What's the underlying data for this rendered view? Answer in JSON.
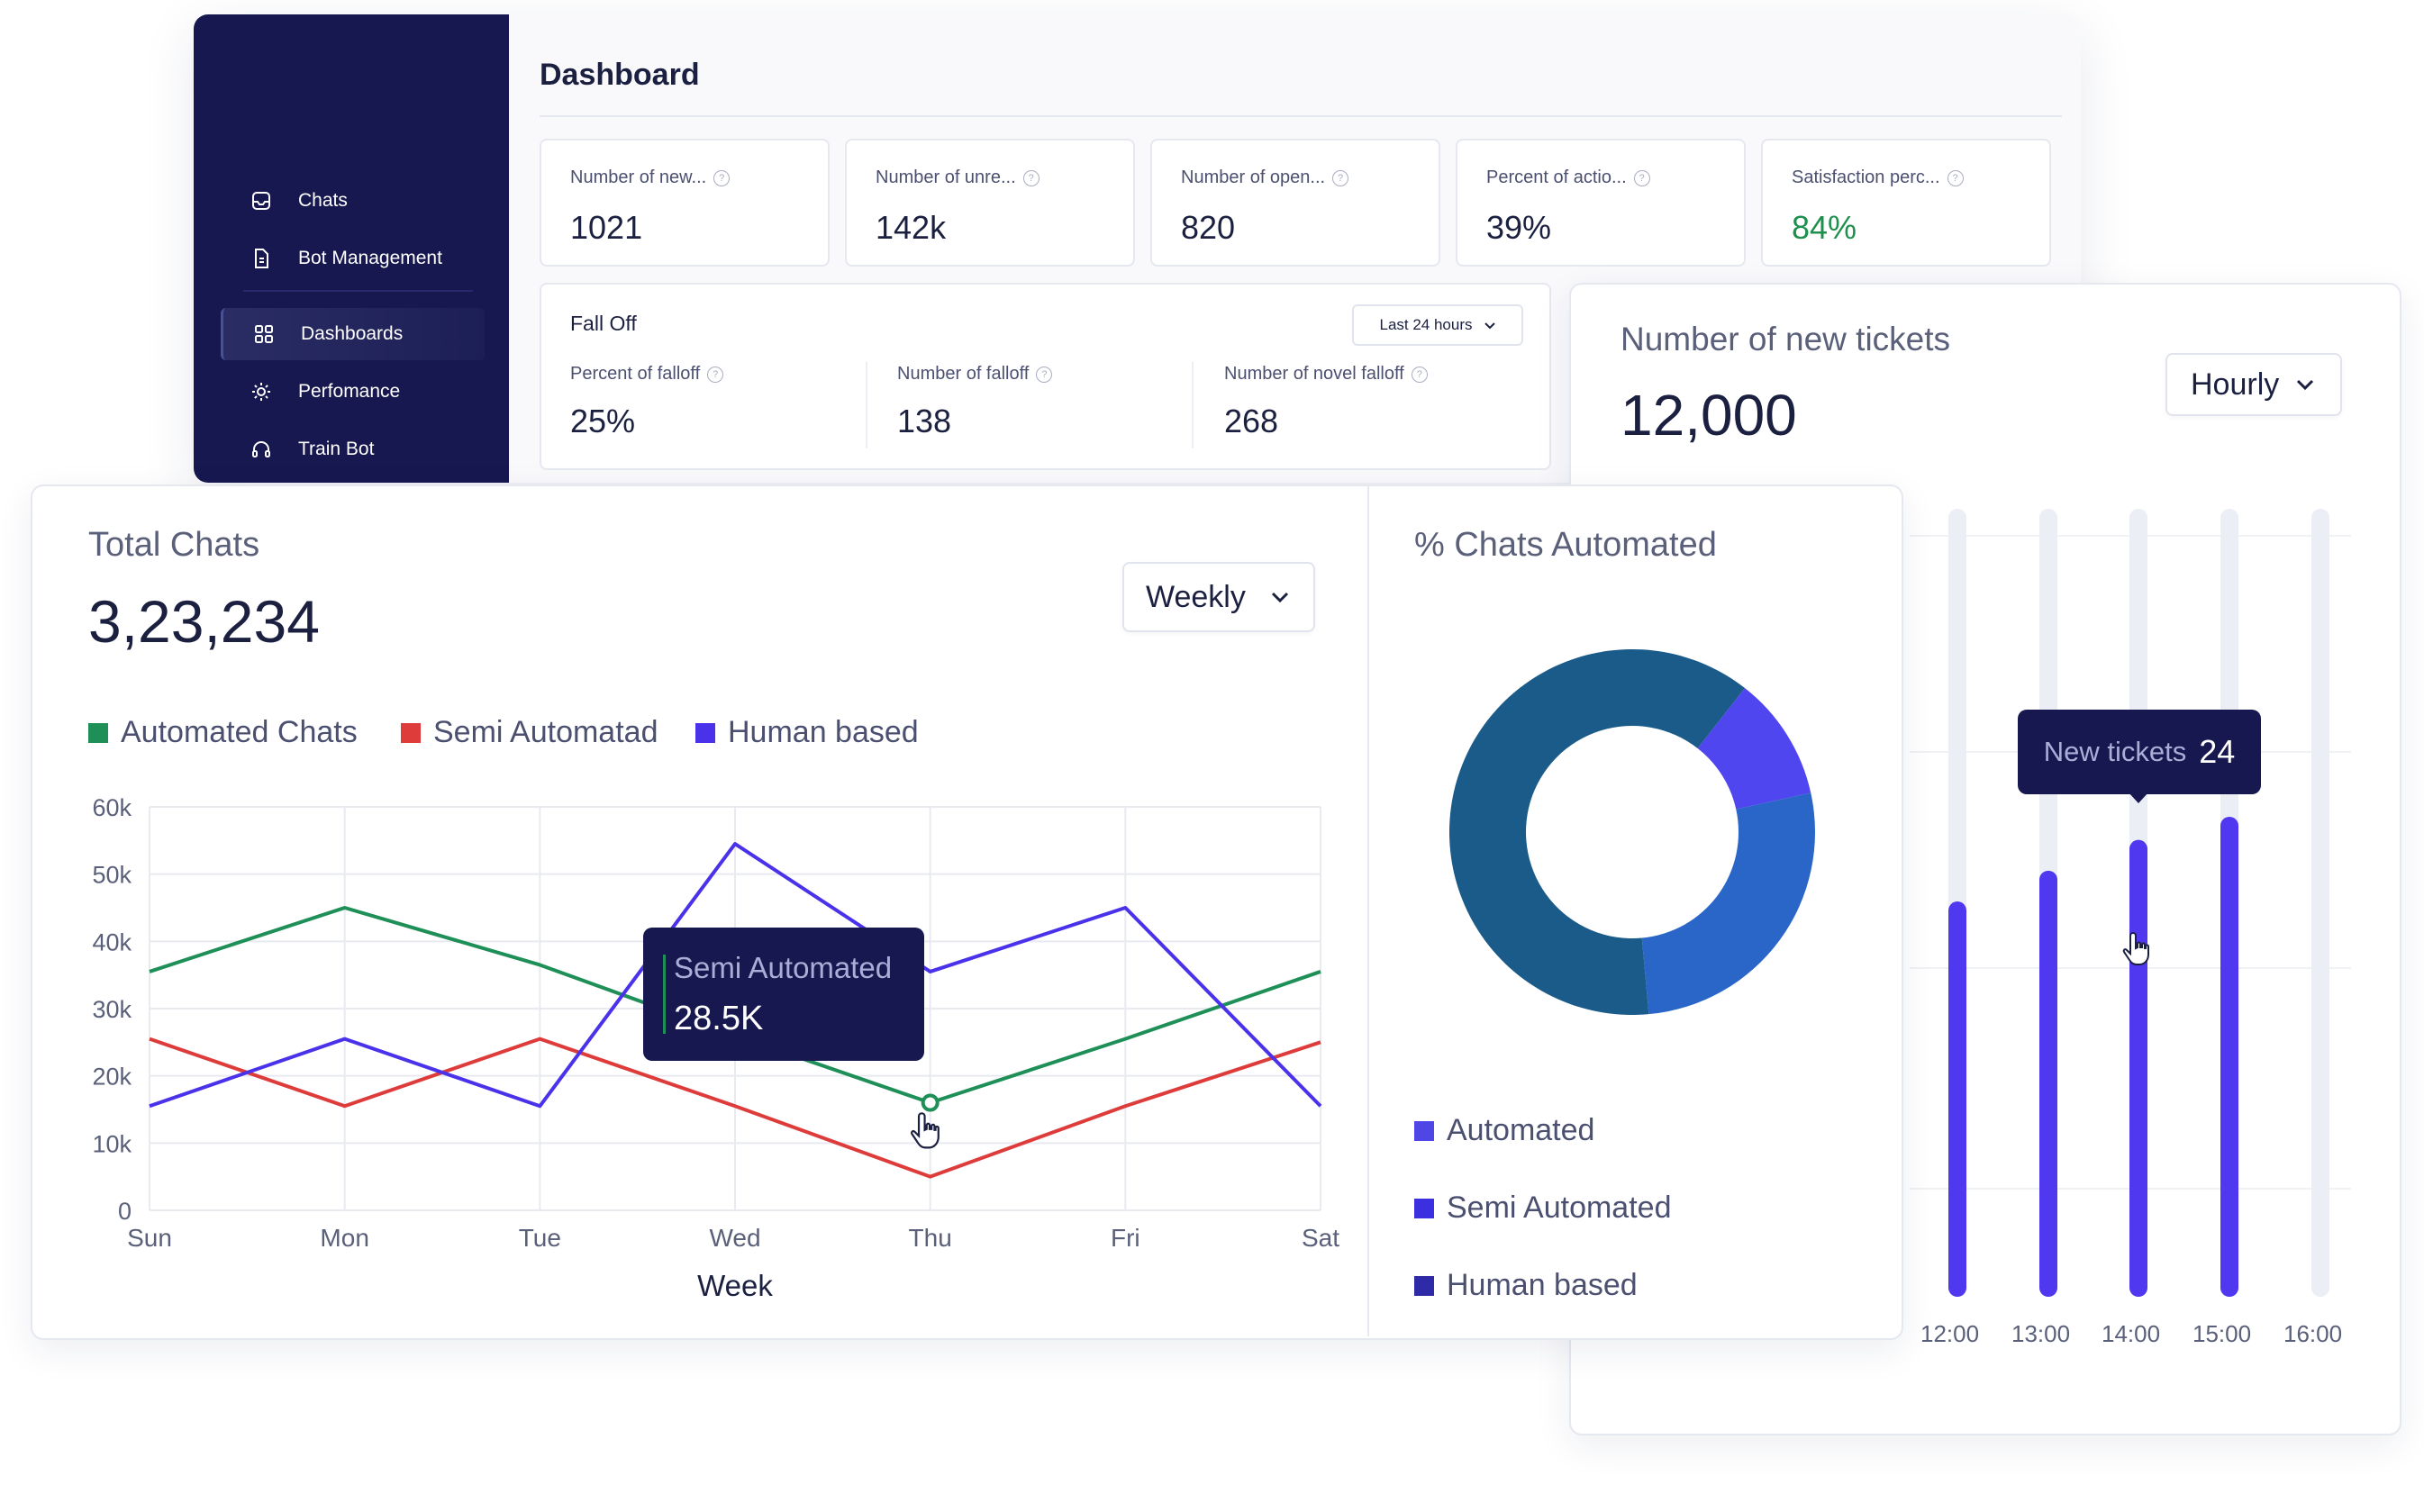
{
  "sidebar": {
    "items": [
      {
        "label": "Chats",
        "icon": "inbox-icon"
      },
      {
        "label": "Bot Management",
        "icon": "document-icon"
      },
      {
        "label": "Dashboards",
        "icon": "grid-icon",
        "active": true
      },
      {
        "label": "Perfomance",
        "icon": "sun-icon"
      },
      {
        "label": "Train Bot",
        "icon": "headset-icon"
      }
    ]
  },
  "dashboard": {
    "title": "Dashboard",
    "stats": [
      {
        "label": "Number of new...",
        "value": "1021"
      },
      {
        "label": "Number of unre...",
        "value": "142k"
      },
      {
        "label": "Number of open...",
        "value": "820"
      },
      {
        "label": "Percent of actio...",
        "value": "39%"
      },
      {
        "label": "Satisfaction perc...",
        "value": "84%",
        "color": "#1f8f4e"
      }
    ],
    "falloff": {
      "title": "Fall Off",
      "range": "Last 24 hours",
      "metrics": [
        {
          "label": "Percent of falloff",
          "value": "25%"
        },
        {
          "label": "Number of falloff",
          "value": "138"
        },
        {
          "label": "Number of novel falloff",
          "value": "268"
        }
      ]
    }
  },
  "tickets": {
    "title": "Number of new tickets",
    "value": "12,000",
    "period": "Hourly",
    "tooltip": {
      "label": "New tickets",
      "value": "24"
    },
    "chart_data": {
      "type": "bar",
      "categories": [
        "12:00",
        "13:00",
        "14:00",
        "15:00",
        "16:00"
      ],
      "values": [
        0.49,
        0.53,
        0.57,
        0.6,
        0
      ],
      "track_max": 1,
      "colors": {
        "bar": "#4f38f0",
        "track": "#eceef5"
      }
    }
  },
  "total_chats": {
    "title": "Total Chats",
    "value": "3,23,234",
    "period": "Weekly",
    "tooltip": {
      "label": "Semi Automated",
      "value": "28.5K"
    },
    "chart_data": {
      "type": "line",
      "categories": [
        "Sun",
        "Mon",
        "Tue",
        "Wed",
        "Thu",
        "Fri",
        "Sat"
      ],
      "xlabel": "Week",
      "ylim": [
        0,
        60000
      ],
      "yticks": [
        "0",
        "10k",
        "20k",
        "30k",
        "40k",
        "50k",
        "60k"
      ],
      "series": [
        {
          "name": "Automated Chats",
          "color": "#1f8f58",
          "values": [
            35500,
            45000,
            36500,
            26000,
            16000,
            25500,
            35500
          ]
        },
        {
          "name": "Semi Automatad",
          "color": "#de3b3b",
          "values": [
            25500,
            15500,
            25500,
            15500,
            5000,
            15500,
            25000
          ]
        },
        {
          "name": "Human based",
          "color": "#4a32ea",
          "values": [
            15500,
            25500,
            15500,
            54500,
            35500,
            45000,
            15500
          ]
        }
      ]
    }
  },
  "automated": {
    "title": "% Chats Automated",
    "chart_data": {
      "type": "pie",
      "slices": [
        {
          "label": "Automated",
          "value": 11,
          "color": "#4f46f0"
        },
        {
          "label": "Semi Automated",
          "value": 27,
          "color": "#2a66c8"
        },
        {
          "label": "Human based",
          "value": 62,
          "color": "#1a5b8a"
        }
      ]
    },
    "legend": [
      {
        "label": "Automated",
        "color": "#4f46e5"
      },
      {
        "label": "Semi Automated",
        "color": "#3b2fe0"
      },
      {
        "label": "Human based",
        "color": "#2e2aa8"
      }
    ]
  }
}
